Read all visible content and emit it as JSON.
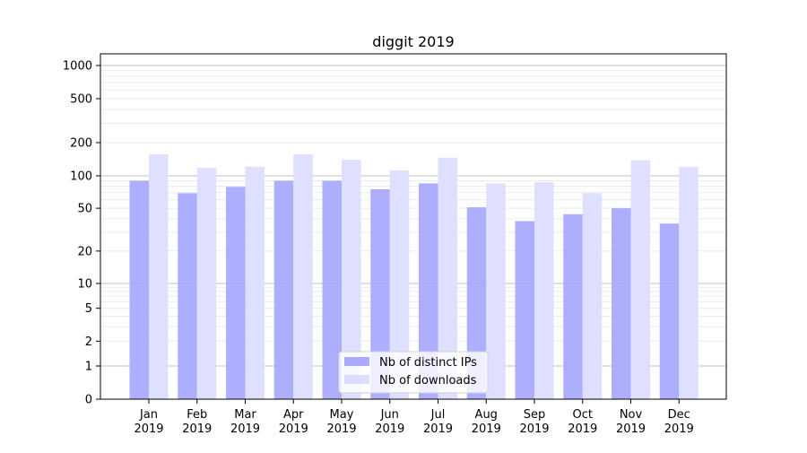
{
  "chart_data": {
    "type": "bar",
    "title": "diggit 2019",
    "xlabel": "",
    "ylabel": "",
    "yscale": "symlog",
    "ylim": [
      0,
      1300
    ],
    "yticks": [
      0,
      1,
      2,
      5,
      10,
      20,
      50,
      100,
      200,
      500,
      1000
    ],
    "grid": true,
    "legend_placement": "bottom-center",
    "categories": [
      "Jan\n2019",
      "Feb\n2019",
      "Mar\n2019",
      "Apr\n2019",
      "May\n2019",
      "Jun\n2019",
      "Jul\n2019",
      "Aug\n2019",
      "Sep\n2019",
      "Oct\n2019",
      "Nov\n2019",
      "Dec\n2019"
    ],
    "series": [
      {
        "name": "Nb of distinct IPs",
        "color": "#aaaaff",
        "values": [
          90,
          69,
          79,
          90,
          90,
          75,
          85,
          51,
          38,
          44,
          50,
          36
        ]
      },
      {
        "name": "Nb of downloads",
        "color": "#ddddff",
        "values": [
          157,
          118,
          121,
          157,
          140,
          112,
          146,
          85,
          87,
          69,
          138,
          121
        ]
      }
    ]
  }
}
